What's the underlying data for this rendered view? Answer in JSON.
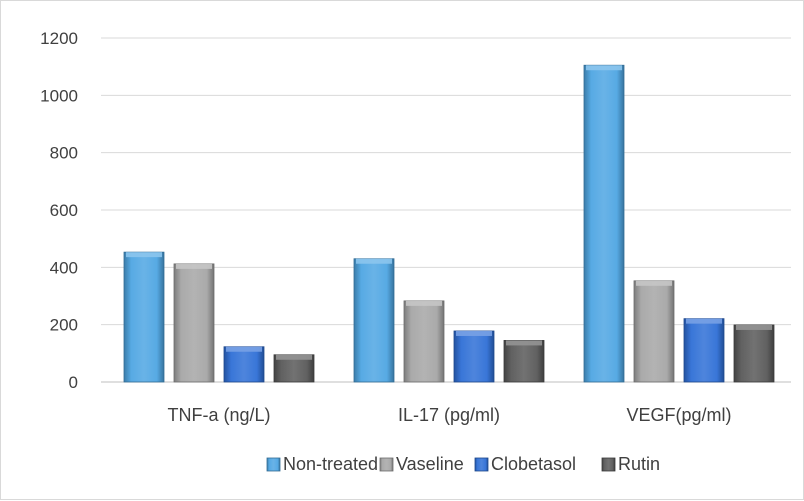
{
  "chart_data": {
    "type": "bar",
    "bar_style": "3d-beveled",
    "categories": [
      "TNF-a (ng/L)",
      "IL-17 (pg/ml)",
      "VEGF(pg/ml)"
    ],
    "series": [
      {
        "name": "Non-treated",
        "values": [
          453,
          430,
          1105
        ],
        "color": "#4ea6e3"
      },
      {
        "name": "Vaseline",
        "values": [
          412,
          283,
          353
        ],
        "color": "#a6a6a6"
      },
      {
        "name": "Clobetasol",
        "values": [
          123,
          178,
          221
        ],
        "color": "#2f6fd6"
      },
      {
        "name": "Rutin",
        "values": [
          95,
          145,
          199
        ],
        "color": "#595959"
      }
    ],
    "y_ticks": [
      "0",
      "200",
      "400",
      "600",
      "800",
      "1000",
      "1200"
    ],
    "ylim": [
      0,
      1200
    ],
    "grid": true,
    "legend_position": "bottom",
    "title": "",
    "xlabel": "",
    "ylabel": ""
  }
}
